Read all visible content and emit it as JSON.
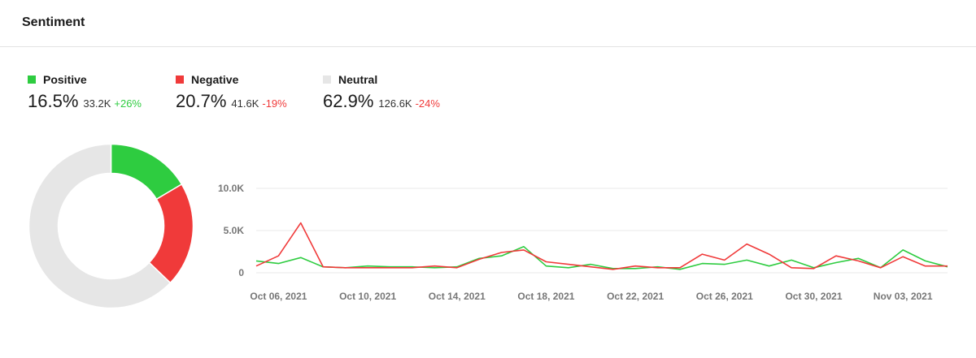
{
  "header": {
    "title": "Sentiment"
  },
  "colors": {
    "positive": "#2ecc40",
    "negative": "#f03a3a",
    "neutral": "#e6e6e6",
    "grid": "#e9e9e9"
  },
  "summary": [
    {
      "key": "positive",
      "label": "Positive",
      "percent": "16.5%",
      "count": "33.2K",
      "change": "+26%",
      "change_color": "#2ecc40"
    },
    {
      "key": "negative",
      "label": "Negative",
      "percent": "20.7%",
      "count": "41.6K",
      "change": "-19%",
      "change_color": "#f03a3a"
    },
    {
      "key": "neutral",
      "label": "Neutral",
      "percent": "62.9%",
      "count": "126.6K",
      "change": "-24%",
      "change_color": "#f03a3a"
    }
  ],
  "chart_data": [
    {
      "type": "pie",
      "categories": [
        "Positive",
        "Negative",
        "Neutral"
      ],
      "values": [
        16.5,
        20.7,
        62.9
      ],
      "colors": [
        "#2ecc40",
        "#f03a3a",
        "#e6e6e6"
      ],
      "donut": true
    },
    {
      "type": "line",
      "x": [
        "Oct 05, 2021",
        "Oct 06, 2021",
        "Oct 07, 2021",
        "Oct 08, 2021",
        "Oct 09, 2021",
        "Oct 10, 2021",
        "Oct 11, 2021",
        "Oct 12, 2021",
        "Oct 13, 2021",
        "Oct 14, 2021",
        "Oct 15, 2021",
        "Oct 16, 2021",
        "Oct 17, 2021",
        "Oct 18, 2021",
        "Oct 19, 2021",
        "Oct 20, 2021",
        "Oct 21, 2021",
        "Oct 22, 2021",
        "Oct 23, 2021",
        "Oct 24, 2021",
        "Oct 25, 2021",
        "Oct 26, 2021",
        "Oct 27, 2021",
        "Oct 28, 2021",
        "Oct 29, 2021",
        "Oct 30, 2021",
        "Oct 31, 2021",
        "Nov 01, 2021",
        "Nov 02, 2021",
        "Nov 03, 2021",
        "Nov 04, 2021",
        "Nov 05, 2021"
      ],
      "x_tick_labels": [
        "Oct 06, 2021",
        "Oct 10, 2021",
        "Oct 14, 2021",
        "Oct 18, 2021",
        "Oct 22, 2021",
        "Oct 26, 2021",
        "Oct 30, 2021",
        "Nov 03, 2021"
      ],
      "x_tick_indices": [
        1,
        5,
        9,
        13,
        17,
        21,
        25,
        29
      ],
      "y_ticks": [
        "0",
        "5.0K",
        "10.0K"
      ],
      "y_tick_values": [
        0,
        5000,
        10000
      ],
      "ylim": [
        0,
        10000
      ],
      "grid": true,
      "series": [
        {
          "name": "Positive",
          "color": "#2ecc40",
          "values": [
            1400,
            1100,
            1800,
            700,
            600,
            800,
            700,
            700,
            600,
            700,
            1700,
            2000,
            3100,
            800,
            600,
            1000,
            500,
            500,
            700,
            400,
            1100,
            1000,
            1500,
            800,
            1500,
            600,
            1200,
            1700,
            600,
            2700,
            1400,
            700
          ]
        },
        {
          "name": "Negative",
          "color": "#f03a3a",
          "values": [
            800,
            2000,
            5900,
            700,
            600,
            600,
            600,
            600,
            800,
            600,
            1600,
            2400,
            2700,
            1300,
            1000,
            700,
            400,
            800,
            600,
            600,
            2200,
            1500,
            3400,
            2200,
            600,
            500,
            2000,
            1400,
            600,
            1900,
            800,
            800
          ]
        }
      ]
    }
  ]
}
